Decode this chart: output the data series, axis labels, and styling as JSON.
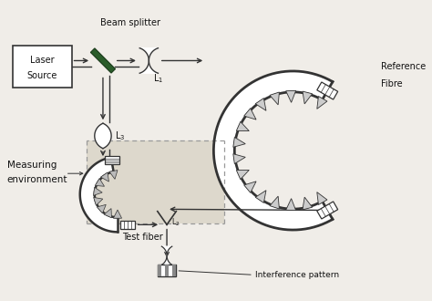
{
  "bg_color": "#f0ede8",
  "line_color": "#333333",
  "dark_color": "#111111",
  "beam_splitter_color": "#2a5c2a",
  "dashed_box_color": "#999999",
  "dot_fill_color": "#ddd8cc",
  "labels": {
    "beam_splitter": "Beam splitter",
    "laser_source_1": "Laser",
    "laser_source_2": "Source",
    "reference_fibre_1": "Reference",
    "reference_fibre_2": "Fibre",
    "L1": "L$_1$",
    "L3": "L$_3$",
    "measuring_env_1": "Measuring",
    "measuring_env_2": "environment",
    "test_fiber": "Test fiber",
    "interference": "Interference pattern"
  },
  "figsize": [
    4.74,
    3.3
  ],
  "dpi": 100
}
